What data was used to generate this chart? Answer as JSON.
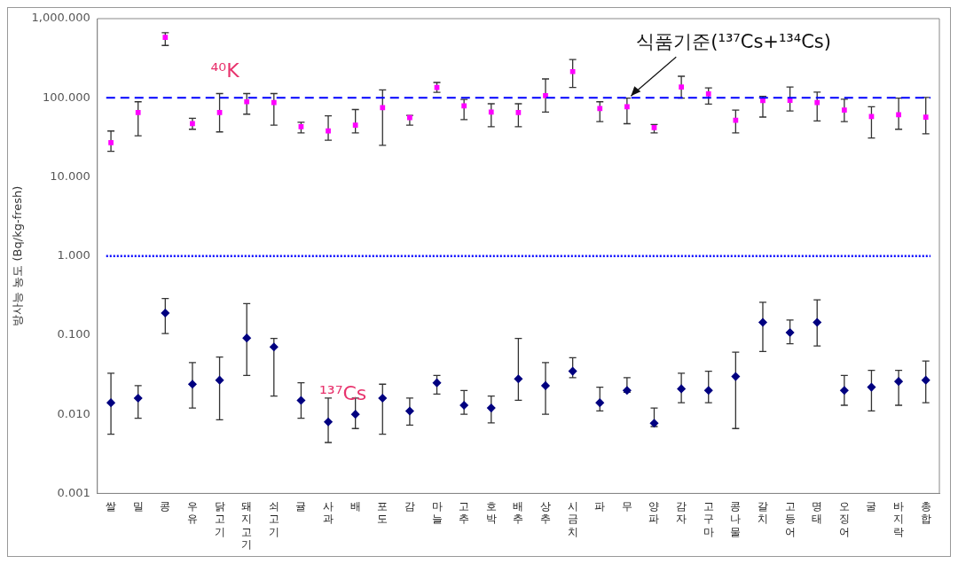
{
  "chart_data": {
    "type": "scatter",
    "ylabel": "방사능 농도 (Bq/kg-fresh)",
    "log": "y",
    "categories": [
      "쌀",
      "밀",
      "콩",
      "우유",
      "닭고기",
      "돼지고기",
      "쇠고기",
      "귤",
      "사과",
      "배",
      "포도",
      "감",
      "마늘",
      "고추",
      "호박",
      "배추",
      "상추",
      "시금치",
      "파",
      "무",
      "양파",
      "감자",
      "고구마",
      "콩나물",
      "갈치",
      "고등어",
      "명태",
      "오징어",
      "굴",
      "바지락",
      "총합"
    ],
    "ylim": [
      0.001,
      1000
    ],
    "yticks": [
      {
        "value": 0.001,
        "label": "0.001"
      },
      {
        "value": 0.01,
        "label": "0.010"
      },
      {
        "value": 0.1,
        "label": "0.100"
      },
      {
        "value": 1,
        "label": "1.000"
      },
      {
        "value": 10,
        "label": "10.000"
      },
      {
        "value": 100,
        "label": "100.000"
      },
      {
        "value": 1000,
        "label": "1,000.000"
      }
    ],
    "series": [
      {
        "name": "⁴⁰K",
        "color": "#ff00ff",
        "marker": "square",
        "values": [
          27,
          65,
          580,
          47,
          65,
          89,
          87,
          43,
          38,
          45,
          75,
          56,
          135,
          79,
          66,
          65,
          106,
          214,
          73,
          77,
          42,
          137,
          112,
          52,
          92,
          93,
          87,
          70,
          58,
          61,
          57
        ],
        "errors": [
          [
            21,
            38
          ],
          [
            33,
            89
          ],
          [
            458,
            664
          ],
          [
            40,
            55
          ],
          [
            37,
            113
          ],
          [
            62,
            113
          ],
          [
            45,
            113
          ],
          [
            36,
            49
          ],
          [
            29,
            59
          ],
          [
            36,
            71
          ],
          [
            25,
            126
          ],
          [
            45,
            60
          ],
          [
            117,
            156
          ],
          [
            53,
            95
          ],
          [
            43,
            84
          ],
          [
            43,
            84
          ],
          [
            66,
            173
          ],
          [
            135,
            304
          ],
          [
            50,
            89
          ],
          [
            47,
            99
          ],
          [
            36,
            46
          ],
          [
            99,
            187
          ],
          [
            83,
            133
          ],
          [
            36,
            70
          ],
          [
            57,
            104
          ],
          [
            68,
            137
          ],
          [
            51,
            118
          ],
          [
            50,
            96
          ],
          [
            31,
            77
          ],
          [
            40,
            99
          ],
          [
            35,
            101
          ]
        ]
      },
      {
        "name": "¹³⁷Cs",
        "color": "#000080",
        "marker": "diamond",
        "values": [
          0.014,
          0.016,
          0.19,
          0.024,
          0.027,
          0.092,
          0.071,
          0.015,
          0.008,
          0.01,
          0.016,
          0.011,
          0.025,
          0.013,
          0.012,
          0.028,
          0.023,
          0.035,
          0.014,
          0.02,
          0.0077,
          0.021,
          0.02,
          0.03,
          0.145,
          0.108,
          0.145,
          0.02,
          0.022,
          0.026,
          0.027
        ],
        "errors": [
          [
            0.0056,
            0.033
          ],
          [
            0.0089,
            0.023
          ],
          [
            0.105,
            0.29
          ],
          [
            0.012,
            0.045
          ],
          [
            0.0085,
            0.053
          ],
          [
            0.031,
            0.25
          ],
          [
            0.017,
            0.091
          ],
          [
            0.0089,
            0.025
          ],
          [
            0.0044,
            0.016
          ],
          [
            0.0066,
            0.016
          ],
          [
            0.0056,
            0.024
          ],
          [
            0.0073,
            0.016
          ],
          [
            0.018,
            0.031
          ],
          [
            0.01,
            0.02
          ],
          [
            0.0078,
            0.017
          ],
          [
            0.015,
            0.091
          ],
          [
            0.01,
            0.045
          ],
          [
            0.029,
            0.052
          ],
          [
            0.011,
            0.022
          ],
          [
            0.019,
            0.029
          ],
          [
            0.007,
            0.012
          ],
          [
            0.014,
            0.033
          ],
          [
            0.014,
            0.035
          ],
          [
            0.0066,
            0.061
          ],
          [
            0.062,
            0.26
          ],
          [
            0.078,
            0.155
          ],
          [
            0.073,
            0.28
          ],
          [
            0.013,
            0.031
          ],
          [
            0.011,
            0.036
          ],
          [
            0.013,
            0.036
          ],
          [
            0.014,
            0.047
          ]
        ]
      }
    ],
    "ref_lines": [
      {
        "axis": "y",
        "value": 100,
        "label": "식품기준(¹³⁷Cs+¹³⁴Cs)",
        "color": "#0000ff",
        "line_style": "dashed"
      },
      {
        "axis": "y",
        "value": 1,
        "color": "#0000ff",
        "line_style": "dotted"
      }
    ],
    "grid": false,
    "legend": false
  }
}
